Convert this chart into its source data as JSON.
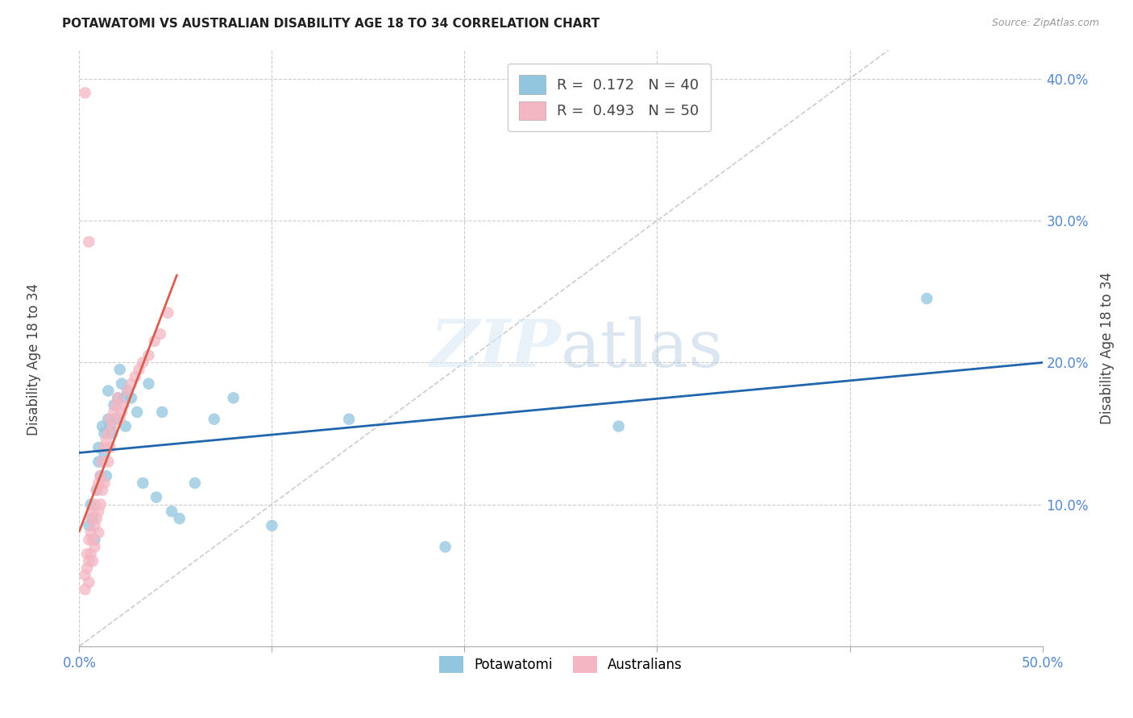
{
  "title": "POTAWATOMI VS AUSTRALIAN DISABILITY AGE 18 TO 34 CORRELATION CHART",
  "source": "Source: ZipAtlas.com",
  "ylabel": "Disability Age 18 to 34",
  "xlim": [
    0.0,
    0.5
  ],
  "ylim": [
    0.0,
    0.42
  ],
  "R1": 0.172,
  "N1": 40,
  "R2": 0.493,
  "N2": 50,
  "color_blue": "#92c5de",
  "color_pink": "#f4b6c2",
  "line_blue": "#2166ac",
  "line_pink": "#d6604d",
  "watermark_zip": "ZIP",
  "watermark_atlas": "atlas",
  "background": "#ffffff",
  "grid_color": "#cccccc",
  "tick_color": "#5588cc",
  "legend_label1": "Potawatomi",
  "legend_label2": "Australians",
  "pot_x": [
    0.005,
    0.006,
    0.007,
    0.008,
    0.009,
    0.01,
    0.01,
    0.011,
    0.012,
    0.013,
    0.013,
    0.014,
    0.015,
    0.015,
    0.016,
    0.017,
    0.018,
    0.019,
    0.02,
    0.021,
    0.022,
    0.023,
    0.024,
    0.025,
    0.027,
    0.03,
    0.033,
    0.036,
    0.04,
    0.043,
    0.048,
    0.052,
    0.06,
    0.07,
    0.08,
    0.1,
    0.14,
    0.19,
    0.28,
    0.44
  ],
  "pot_y": [
    0.085,
    0.1,
    0.09,
    0.075,
    0.11,
    0.13,
    0.14,
    0.12,
    0.155,
    0.135,
    0.15,
    0.12,
    0.16,
    0.18,
    0.155,
    0.15,
    0.17,
    0.16,
    0.175,
    0.195,
    0.185,
    0.175,
    0.155,
    0.18,
    0.175,
    0.165,
    0.115,
    0.185,
    0.105,
    0.165,
    0.095,
    0.09,
    0.115,
    0.16,
    0.175,
    0.085,
    0.16,
    0.07,
    0.155,
    0.245
  ],
  "aus_x": [
    0.003,
    0.003,
    0.004,
    0.004,
    0.005,
    0.005,
    0.005,
    0.006,
    0.006,
    0.006,
    0.007,
    0.007,
    0.007,
    0.008,
    0.008,
    0.008,
    0.009,
    0.009,
    0.01,
    0.01,
    0.01,
    0.011,
    0.011,
    0.012,
    0.012,
    0.013,
    0.013,
    0.014,
    0.015,
    0.015,
    0.016,
    0.016,
    0.017,
    0.018,
    0.019,
    0.02,
    0.021,
    0.022,
    0.023,
    0.025,
    0.027,
    0.029,
    0.031,
    0.033,
    0.036,
    0.039,
    0.042,
    0.046,
    0.005,
    0.003
  ],
  "aus_y": [
    0.05,
    0.04,
    0.065,
    0.055,
    0.075,
    0.06,
    0.045,
    0.08,
    0.09,
    0.065,
    0.095,
    0.075,
    0.06,
    0.1,
    0.085,
    0.07,
    0.11,
    0.09,
    0.115,
    0.095,
    0.08,
    0.12,
    0.1,
    0.13,
    0.11,
    0.14,
    0.115,
    0.145,
    0.15,
    0.13,
    0.16,
    0.14,
    0.155,
    0.165,
    0.17,
    0.175,
    0.16,
    0.165,
    0.17,
    0.18,
    0.185,
    0.19,
    0.195,
    0.2,
    0.205,
    0.215,
    0.22,
    0.235,
    0.285,
    0.39
  ]
}
